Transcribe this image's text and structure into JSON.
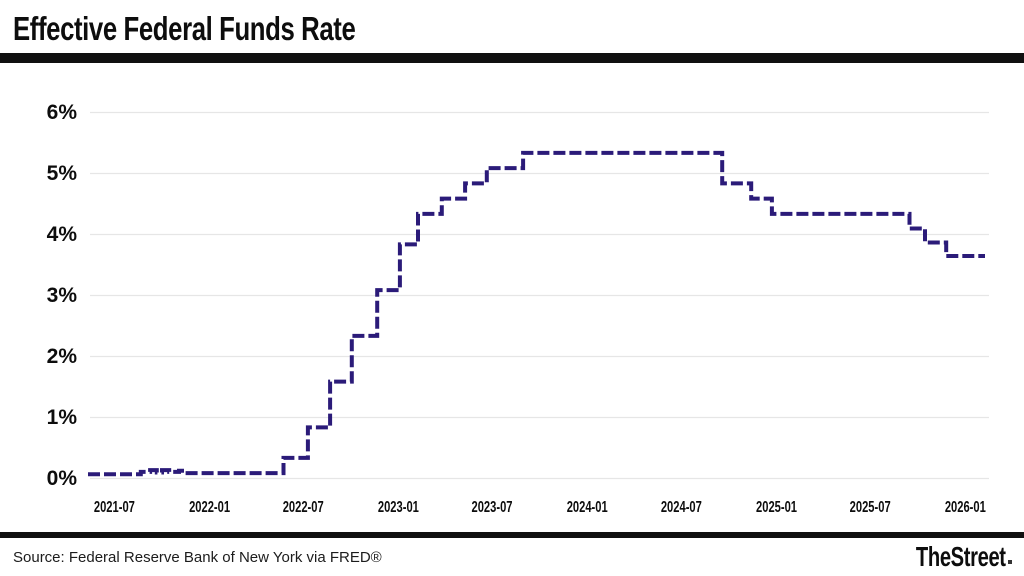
{
  "header": {
    "title": "Effective Federal Funds Rate"
  },
  "footer": {
    "source": "Source: Federal Reserve Bank of New York via FRED®",
    "brand": "TheStreet"
  },
  "chart_data": {
    "type": "line",
    "line_style": "stepped-dashed",
    "title": "Effective Federal Funds Rate",
    "xlabel": "",
    "ylabel": "",
    "unit": "percent",
    "ylim": [
      0,
      6
    ],
    "grid": "horizontal",
    "legend": "none",
    "line_color": "#2b1b79",
    "grid_color": "#e6e6e6",
    "y_ticks": [
      {
        "label": "0%",
        "value": 0
      },
      {
        "label": "1%",
        "value": 1
      },
      {
        "label": "2%",
        "value": 2
      },
      {
        "label": "3%",
        "value": 3
      },
      {
        "label": "4%",
        "value": 4
      },
      {
        "label": "5%",
        "value": 5
      },
      {
        "label": "6%",
        "value": 6
      }
    ],
    "x_ticks": [
      {
        "label": "2021-07",
        "date": "2021-07-01"
      },
      {
        "label": "2022-01",
        "date": "2022-01-01"
      },
      {
        "label": "2022-07",
        "date": "2022-07-01"
      },
      {
        "label": "2023-01",
        "date": "2023-01-01"
      },
      {
        "label": "2023-07",
        "date": "2023-07-01"
      },
      {
        "label": "2024-01",
        "date": "2024-01-01"
      },
      {
        "label": "2024-07",
        "date": "2024-07-01"
      },
      {
        "label": "2025-01",
        "date": "2025-01-01"
      },
      {
        "label": "2025-07",
        "date": "2025-07-01"
      },
      {
        "label": "2026-01",
        "date": "2026-01-01"
      }
    ],
    "steps": [
      [
        "2021-05-11",
        0.06
      ],
      [
        "2021-08-21",
        0.1
      ],
      [
        "2021-09-08",
        0.13
      ],
      [
        "2021-09-21",
        0.09
      ],
      [
        "2021-10-01",
        0.13
      ],
      [
        "2021-10-15",
        0.1
      ],
      [
        "2021-11-03",
        0.12
      ],
      [
        "2021-11-15",
        0.08
      ],
      [
        "2022-05-24",
        0.33
      ],
      [
        "2022-07-10",
        0.83
      ],
      [
        "2022-08-22",
        1.58
      ],
      [
        "2022-10-03",
        2.33
      ],
      [
        "2022-11-21",
        3.08
      ],
      [
        "2023-01-04",
        3.83
      ],
      [
        "2023-02-08",
        4.33
      ],
      [
        "2023-03-26",
        4.58
      ],
      [
        "2023-05-10",
        4.83
      ],
      [
        "2023-06-21",
        5.08
      ],
      [
        "2023-08-30",
        5.33
      ],
      [
        "2024-09-18",
        4.83
      ],
      [
        "2024-11-13",
        4.58
      ],
      [
        "2024-12-23",
        4.33
      ],
      [
        "2025-09-15",
        4.09
      ],
      [
        "2025-10-15",
        3.86
      ],
      [
        "2025-11-25",
        3.64
      ],
      [
        "2026-02-08",
        3.64
      ]
    ]
  }
}
